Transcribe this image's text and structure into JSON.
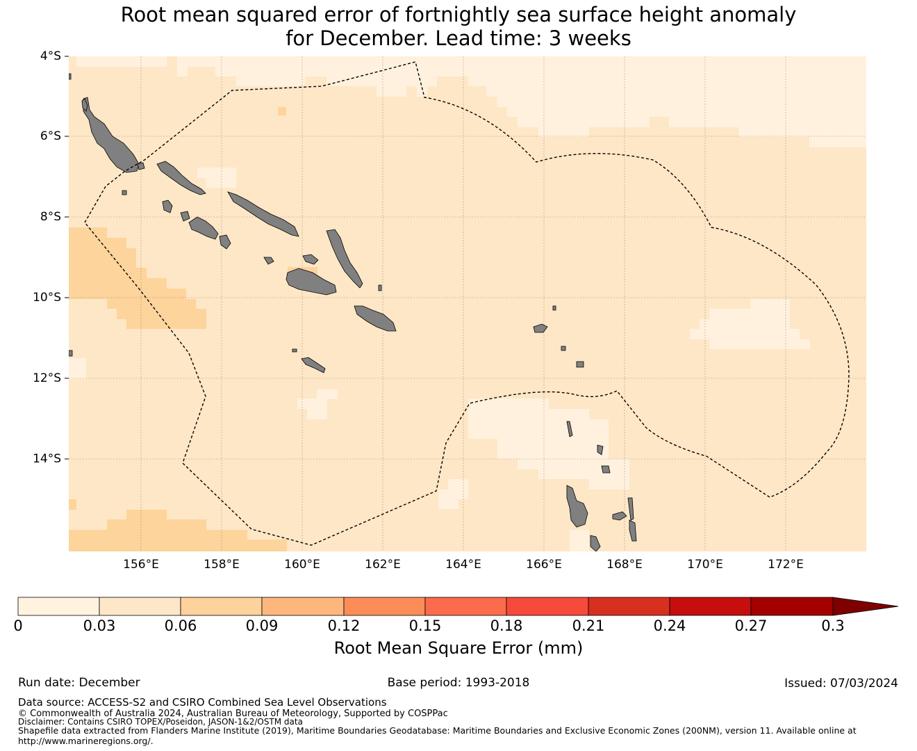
{
  "title": {
    "line1": "Root mean squared error of fortnightly sea surface height anomaly",
    "line2": "for December. Lead time: 3 weeks"
  },
  "map": {
    "lat_labels": [
      "4°S",
      "6°S",
      "8°S",
      "10°S",
      "12°S",
      "14°S"
    ],
    "lon_labels": [
      "156°E",
      "158°E",
      "160°E",
      "162°E",
      "164°E",
      "166°E",
      "168°E",
      "170°E",
      "172°E"
    ],
    "colors": {
      "ocean_base": "#fee7c6",
      "ocean_low": "#fff1de",
      "ocean_mid": "#fdd49c",
      "land": "#808080",
      "grid": "#000000",
      "eez": "#000000"
    }
  },
  "colorbar": {
    "ticks": [
      "0",
      "0.03",
      "0.06",
      "0.09",
      "0.12",
      "0.15",
      "0.18",
      "0.21",
      "0.24",
      "0.27",
      "0.3"
    ],
    "colors": [
      "#fff3e0",
      "#fee6c9",
      "#fdd29c",
      "#fdb77c",
      "#fc8d59",
      "#fc6b4c",
      "#f64a3b",
      "#d7301f",
      "#c60e0e",
      "#a40000",
      "#7f0000"
    ],
    "label": "Root Mean Square Error (mm)"
  },
  "footer": {
    "run_date": "Run date: December",
    "base_period": "Base period: 1993-2018",
    "issued": "Issued: 07/03/2024",
    "data_source": "Data source: ACCESS-S2 and CSIRO Combined Sea Level Observations",
    "copyright": "© Commonwealth of Australia 2024, Australian Bureau of Meteorology, Supported by COSPPac",
    "disclaimer": "Disclaimer: Contains CSIRO TOPEX/Poseidon, JASON-1&2/OSTM data",
    "shapefile_line1": "Shapefile data extracted from Flanders Marine Institute (2019), Maritime Boundaries Geodatabase: Maritime Boundaries and Exclusive Economic Zones (200NM), version 11. Available online at",
    "shapefile_line2": "http://www.marineregions.org/."
  }
}
